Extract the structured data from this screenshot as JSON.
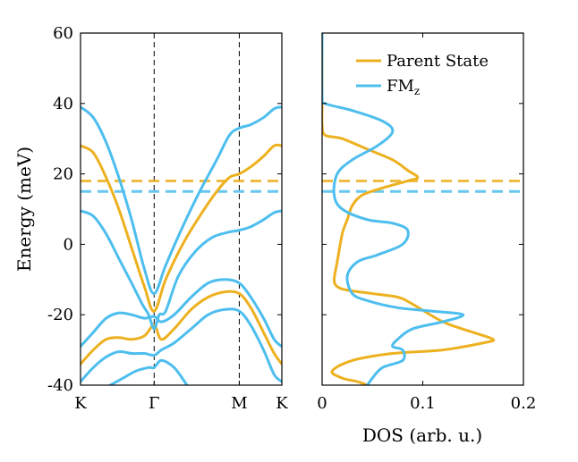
{
  "chart_data": [
    {
      "type": "line",
      "panel": "band structure",
      "ylabel": "Energy (meV)",
      "ylim": [
        -40,
        60
      ],
      "yticks": [
        -40,
        -20,
        0,
        20,
        40,
        60
      ],
      "xlim": [
        0,
        4.73
      ],
      "xticks": [
        {
          "pos": 0,
          "label": "K"
        },
        {
          "pos": 1.73,
          "label": "Γ"
        },
        {
          "pos": 3.73,
          "label": "M"
        },
        {
          "pos": 4.73,
          "label": "K"
        }
      ],
      "vlines": [
        1.73,
        3.73
      ],
      "colors": {
        "parent": "#EDB120",
        "fm": "#4DBEEE"
      },
      "hlines": [
        {
          "name": "Parent State Fermi level",
          "y": 18,
          "color": "#EDB120"
        },
        {
          "name": "FMz Fermi level",
          "y": 15,
          "color": "#4DBEEE"
        }
      ],
      "series": [
        {
          "name": "Parent State band 1",
          "color": "#EDB120",
          "x": [
            0,
            0.3,
            0.6,
            0.9,
            1.2,
            1.5,
            1.73,
            2.0,
            2.4,
            2.8,
            3.2,
            3.5,
            3.73,
            4.0,
            4.3,
            4.55,
            4.73
          ],
          "y": [
            28,
            26,
            19,
            10,
            -1,
            -12,
            -19,
            -10,
            0,
            8,
            15,
            19,
            20,
            22,
            25,
            28,
            28
          ]
        },
        {
          "name": "Parent State band 2",
          "color": "#EDB120",
          "x": [
            0,
            0.3,
            0.6,
            0.9,
            1.2,
            1.5,
            1.73,
            1.9,
            2.2,
            2.6,
            3.0,
            3.4,
            3.73,
            4.0,
            4.3,
            4.55,
            4.73
          ],
          "y": [
            -34,
            -30,
            -27,
            -26.5,
            -27,
            -26,
            -23,
            -27,
            -24,
            -18.5,
            -15,
            -13.5,
            -14,
            -18,
            -25,
            -31,
            -34
          ]
        },
        {
          "name": "FMz band 1",
          "color": "#4DBEEE",
          "x": [
            0,
            0.3,
            0.6,
            0.9,
            1.2,
            1.5,
            1.73,
            2.0,
            2.4,
            2.8,
            3.2,
            3.5,
            3.73,
            4.0,
            4.3,
            4.55,
            4.73
          ],
          "y": [
            39,
            36,
            29,
            19,
            7,
            -7,
            -14,
            -6,
            5,
            15,
            24,
            31,
            33,
            34,
            36,
            38.5,
            39
          ]
        },
        {
          "name": "FMz band 2",
          "color": "#4DBEEE",
          "x": [
            0,
            0.3,
            0.6,
            0.9,
            1.2,
            1.45,
            1.6,
            1.73,
            1.85,
            2.0,
            2.3,
            2.7,
            3.1,
            3.5,
            3.73,
            4.0,
            4.3,
            4.55,
            4.73
          ],
          "y": [
            9.5,
            8,
            3,
            -4,
            -11,
            -17,
            -20,
            -24,
            -20,
            -19,
            -9,
            -2,
            2,
            3.5,
            4,
            5,
            7,
            9,
            9.5
          ]
        },
        {
          "name": "FMz band 3",
          "color": "#4DBEEE",
          "x": [
            0,
            0.3,
            0.6,
            0.9,
            1.2,
            1.5,
            1.73,
            1.9,
            2.2,
            2.6,
            3.0,
            3.4,
            3.73,
            4.0,
            4.3,
            4.55,
            4.73
          ],
          "y": [
            -29,
            -25,
            -21,
            -19.5,
            -20,
            -21,
            -20.5,
            -22,
            -20,
            -15,
            -11,
            -10,
            -11,
            -15,
            -21,
            -27,
            -29
          ]
        },
        {
          "name": "FMz band 4",
          "color": "#4DBEEE",
          "x": [
            0,
            0.3,
            0.6,
            0.9,
            1.2,
            1.5,
            1.73,
            1.9,
            2.2,
            2.6,
            3.0,
            3.4,
            3.73,
            4.0,
            4.3,
            4.55,
            4.73
          ],
          "y": [
            -39,
            -35,
            -32,
            -30.5,
            -31,
            -31,
            -31.5,
            -30,
            -28,
            -24,
            -20,
            -18.5,
            -19,
            -23,
            -30,
            -37,
            -39
          ]
        },
        {
          "name": "FMz band 5",
          "color": "#4DBEEE",
          "x": [
            0.7,
            1.0,
            1.3,
            1.6,
            1.73,
            1.9,
            2.2,
            2.5
          ],
          "y": [
            -40,
            -38,
            -36,
            -35,
            -35,
            -33,
            -35,
            -40
          ]
        }
      ]
    },
    {
      "type": "line",
      "panel": "density of states",
      "xlabel": "DOS (arb. u.)",
      "xlim": [
        0,
        0.2
      ],
      "xticks": [
        0,
        0.1,
        0.2
      ],
      "ylim": [
        -40,
        60
      ],
      "legend": {
        "position": "top-right",
        "entries": [
          {
            "label": "Parent State",
            "color": "#EDB120"
          },
          {
            "label": "FM",
            "sub": "z",
            "color": "#4DBEEE"
          }
        ]
      },
      "hlines": [
        {
          "name": "Parent State Fermi level",
          "y": 18,
          "color": "#EDB120"
        },
        {
          "name": "FMz Fermi level",
          "y": 15,
          "color": "#4DBEEE"
        }
      ],
      "series": [
        {
          "name": "Parent State",
          "color": "#EDB120",
          "x": [
            0,
            0,
            0,
            0.003,
            0.02,
            0.045,
            0.07,
            0.085,
            0.095,
            0.085,
            0.06,
            0.04,
            0.03,
            0.025,
            0.02,
            0.015,
            0.012,
            0.015,
            0.025,
            0.05,
            0.075,
            0.09,
            0.12,
            0.15,
            0.17,
            0.16,
            0.12,
            0.07,
            0.03,
            0.01,
            0.02,
            0.035,
            0.045
          ],
          "y": [
            60,
            40,
            34,
            31,
            30,
            27,
            24,
            21,
            19,
            18,
            16,
            14,
            11,
            7,
            3,
            -5,
            -10,
            -12,
            -13,
            -14,
            -15,
            -17,
            -22,
            -25,
            -27,
            -28,
            -30,
            -31,
            -33,
            -36,
            -38,
            -39,
            -40
          ]
        },
        {
          "name": "FMz",
          "color": "#4DBEEE",
          "x": [
            0,
            0,
            0.003,
            0.03,
            0.06,
            0.07,
            0.055,
            0.03,
            0.015,
            0.012,
            0.02,
            0.045,
            0.07,
            0.085,
            0.08,
            0.055,
            0.035,
            0.025,
            0.03,
            0.045,
            0.075,
            0.11,
            0.14,
            0.12,
            0.09,
            0.075,
            0.07,
            0.08,
            0.08,
            0.06,
            0.05,
            0.045
          ],
          "y": [
            60,
            42,
            40,
            38,
            35,
            32,
            28,
            24,
            20,
            14,
            10,
            7,
            6,
            4,
            0,
            -3,
            -5,
            -9,
            -14,
            -16,
            -18,
            -19,
            -20,
            -22,
            -24,
            -27,
            -29,
            -30,
            -33,
            -35,
            -38,
            -40
          ]
        }
      ]
    }
  ]
}
